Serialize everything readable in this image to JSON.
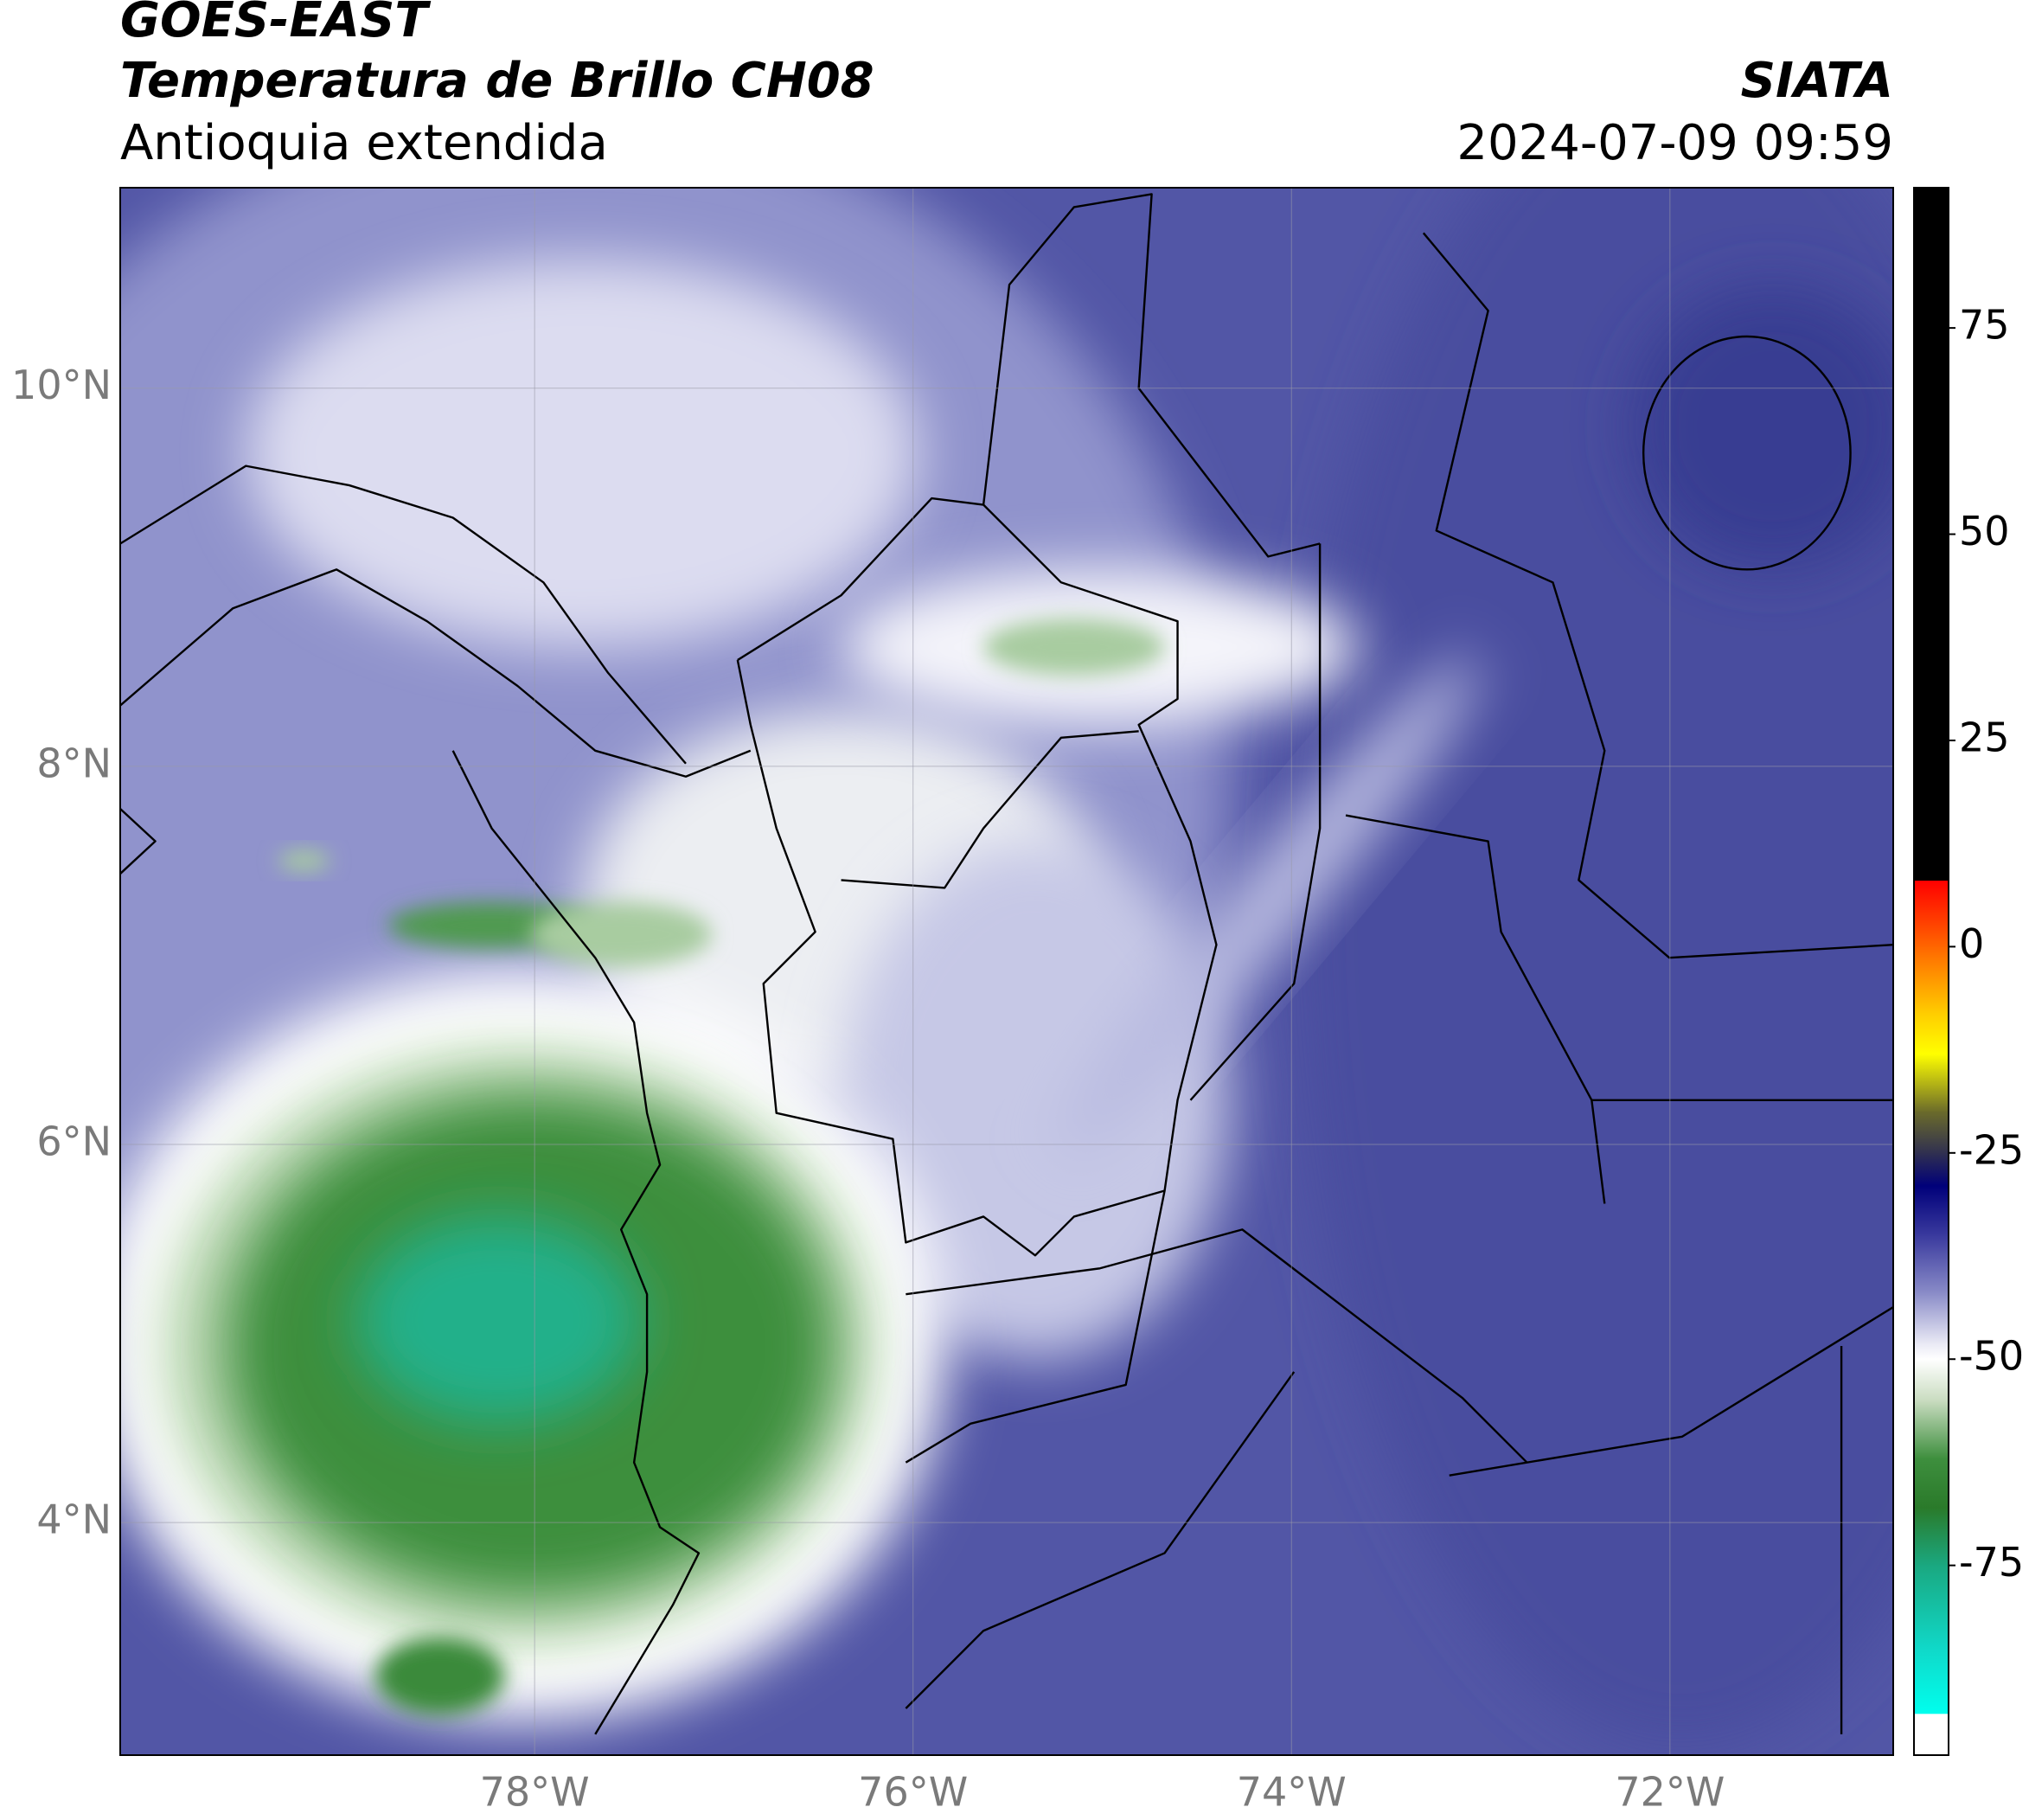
{
  "header": {
    "source": "GOES-EAST",
    "title": "Temperatura de Brillo CH08",
    "subtitle": "Antioquia extendida",
    "agency": "SIATA",
    "datetime": "2024-07-09 09:59"
  },
  "map": {
    "xlim": [
      -80.19,
      -70.82
    ],
    "ylim": [
      2.77,
      11.06
    ],
    "xticks": [
      {
        "value": -78,
        "label": "78°W"
      },
      {
        "value": -76,
        "label": "76°W"
      },
      {
        "value": -74,
        "label": "74°W"
      },
      {
        "value": -72,
        "label": "72°W"
      }
    ],
    "yticks": [
      {
        "value": 4,
        "label": "4°N"
      },
      {
        "value": 6,
        "label": "6°N"
      },
      {
        "value": 8,
        "label": "8°N"
      },
      {
        "value": 10,
        "label": "10°N"
      }
    ],
    "grid": true
  },
  "colorbar": {
    "lim": [
      -98,
      92
    ],
    "ticks": [
      -75,
      -50,
      -25,
      0,
      25,
      50,
      75
    ],
    "stops": [
      {
        "value": 92,
        "color": "#000000"
      },
      {
        "value": 8,
        "color": "#000000"
      },
      {
        "value": 8,
        "color": "#ff0000"
      },
      {
        "value": 0,
        "color": "#ff6600"
      },
      {
        "value": -8,
        "color": "#ffcc00"
      },
      {
        "value": -13,
        "color": "#ffff00"
      },
      {
        "value": -20,
        "color": "#6b6b2a"
      },
      {
        "value": -25,
        "color": "#303050"
      },
      {
        "value": -29,
        "color": "#00007a"
      },
      {
        "value": -35,
        "color": "#3a3a9e"
      },
      {
        "value": -42,
        "color": "#8a8cc8"
      },
      {
        "value": -48,
        "color": "#e8e8f4"
      },
      {
        "value": -50,
        "color": "#ffffff"
      },
      {
        "value": -55,
        "color": "#c9dcc0"
      },
      {
        "value": -62,
        "color": "#3e8f3e"
      },
      {
        "value": -68,
        "color": "#2a7a2a"
      },
      {
        "value": -75,
        "color": "#1aa880"
      },
      {
        "value": -85,
        "color": "#10d8c8"
      },
      {
        "value": -93,
        "color": "#00ffee"
      },
      {
        "value": -93,
        "color": "#ffffff"
      },
      {
        "value": -98,
        "color": "#ffffff"
      }
    ]
  }
}
